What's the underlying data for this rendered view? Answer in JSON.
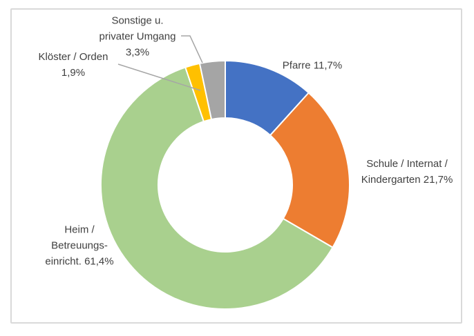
{
  "chart_data": {
    "type": "pie",
    "subtype": "donut",
    "title": "",
    "legend": "none",
    "data_labels": "outside, category name + percent",
    "start_angle_deg": 0,
    "direction": "clockwise",
    "hole_ratio": 0.54,
    "categories": [
      "Pfarre",
      "Schule / Internat / Kindergarten",
      "Heim / Betreuungseinricht.",
      "Klöster / Orden",
      "Sonstige u. privater Umgang"
    ],
    "values": [
      11.7,
      21.7,
      61.4,
      1.9,
      3.3
    ],
    "value_labels": [
      "11,7%",
      "21,7%",
      "61,4%",
      "1,9%",
      "3,3%"
    ],
    "segments": [
      {
        "id": "pfarre",
        "name": "Pfarre",
        "value_pct": 11.7,
        "color": "#4472C4"
      },
      {
        "id": "schule",
        "name": "Schule / Internat / Kindergarten",
        "value_pct": 21.7,
        "color": "#ED7D31"
      },
      {
        "id": "heim",
        "name": "Heim / Betreuungseinricht.",
        "value_pct": 61.4,
        "color": "#A9D08E"
      },
      {
        "id": "kloester",
        "name": "Klöster / Orden",
        "value_pct": 1.9,
        "color": "#FFC000"
      },
      {
        "id": "sonstige",
        "name": "Sonstige u. privater Umgang",
        "value_pct": 3.3,
        "color": "#A5A5A5"
      }
    ],
    "labels": {
      "pfarre": {
        "lines": [
          "Pfarre 11,7%"
        ]
      },
      "schule": {
        "lines": [
          "Schule / Internat /",
          "Kindergarten 21,7%"
        ]
      },
      "heim": {
        "lines": [
          "Heim /",
          "Betreuungs-",
          "einricht. 61,4%"
        ]
      },
      "kloester": {
        "lines": [
          "Klöster / Orden",
          "1,9%"
        ]
      },
      "sonstige": {
        "lines": [
          "Sonstige u.",
          "privater Umgang",
          "3,3%"
        ]
      }
    },
    "style": {
      "slice_border": "#FFFFFF",
      "label_color": "#404040",
      "leader_line_color": "#A6A6A6",
      "frame_border": "#D9D9D9",
      "background": "#FFFFFF"
    }
  }
}
